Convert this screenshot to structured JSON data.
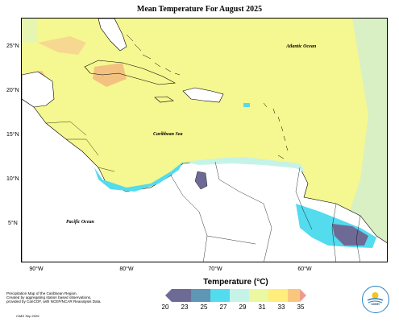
{
  "title": "Mean Temperature For August 2025",
  "latitude_labels": [
    "25°N",
    "20°N",
    "15°N",
    "10°N",
    "5°N"
  ],
  "longitude_labels": [
    "90°W",
    "80°W",
    "70°W",
    "60°W"
  ],
  "ocean_labels": {
    "atlantic": "Atlantic Ocean",
    "caribbean": "Caribbean Sea",
    "pacific": "Pacific Ocean"
  },
  "legend": {
    "title": "Temperature (°C)",
    "ticks": [
      "20",
      "23",
      "25",
      "27",
      "29",
      "31",
      "33",
      "35"
    ],
    "colors": [
      "#6e6a96",
      "#5e96b3",
      "#53dbee",
      "#c6f3e8",
      "#ecf7a2",
      "#ffed7c",
      "#f9c77c",
      "#ef9a8c"
    ]
  },
  "credit": {
    "line1": "Precipitation Map of the Caribbean Region.",
    "line2": "Created by aggregating station based observations,",
    "line3": "provided by CariCOF, with NCEP/NCAR Reanalysis Data.",
    "footer": "CIMH Sep 2025"
  },
  "logo": {
    "text": "CIMH"
  },
  "colors": {
    "land_white": "#ffffff",
    "sea_yellow": "#f5f790",
    "border": "#000000"
  }
}
